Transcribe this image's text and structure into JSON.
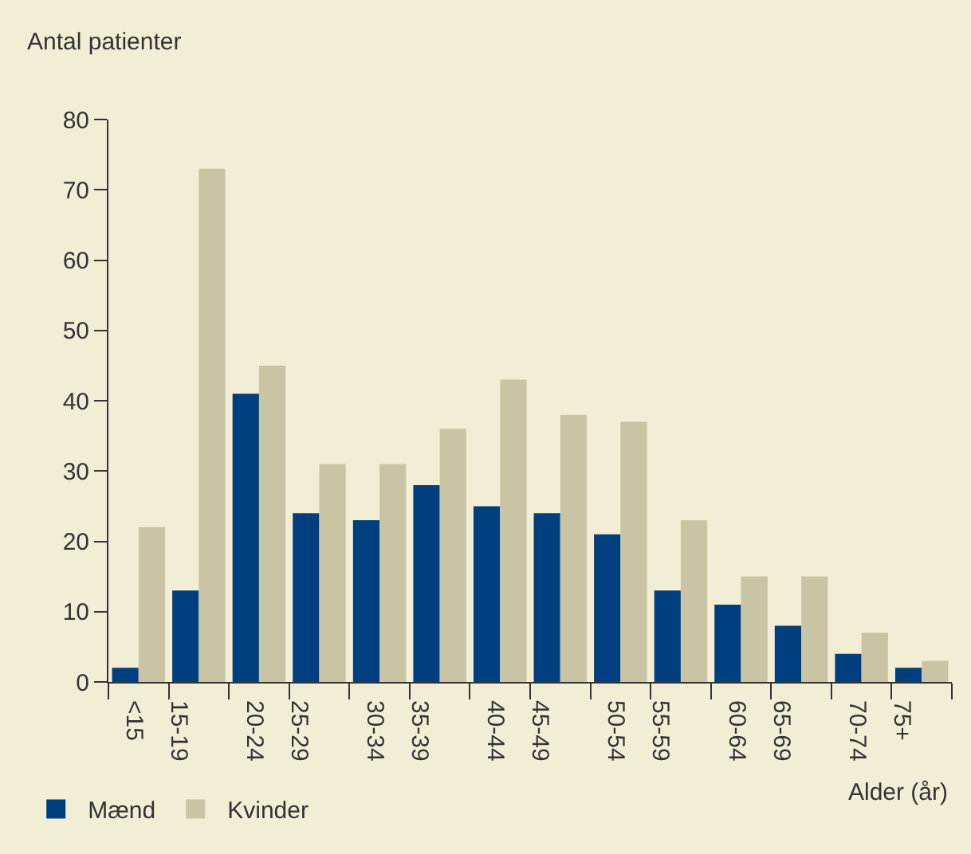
{
  "chart_data": {
    "type": "bar",
    "ylabel": "Antal patienter",
    "xlabel": "Alder (år)",
    "categories": [
      "<15",
      "15-19",
      "20-24",
      "25-29",
      "30-34",
      "35-39",
      "40-44",
      "45-49",
      "50-54",
      "55-59",
      "60-64",
      "65-69",
      "70-74",
      "75+"
    ],
    "series": [
      {
        "name": "Mænd",
        "color": "#003f7f",
        "values": [
          2,
          13,
          41,
          24,
          23,
          28,
          25,
          24,
          21,
          13,
          11,
          8,
          4,
          2
        ]
      },
      {
        "name": "Kvinder",
        "color": "#c8c4a4",
        "values": [
          22,
          73,
          45,
          31,
          31,
          36,
          43,
          38,
          37,
          23,
          15,
          15,
          7,
          3
        ]
      }
    ],
    "ylim": [
      0,
      80
    ],
    "yticks": [
      0,
      10,
      20,
      30,
      40,
      50,
      60,
      70,
      80
    ],
    "grid": false,
    "legend": "bottom left"
  }
}
